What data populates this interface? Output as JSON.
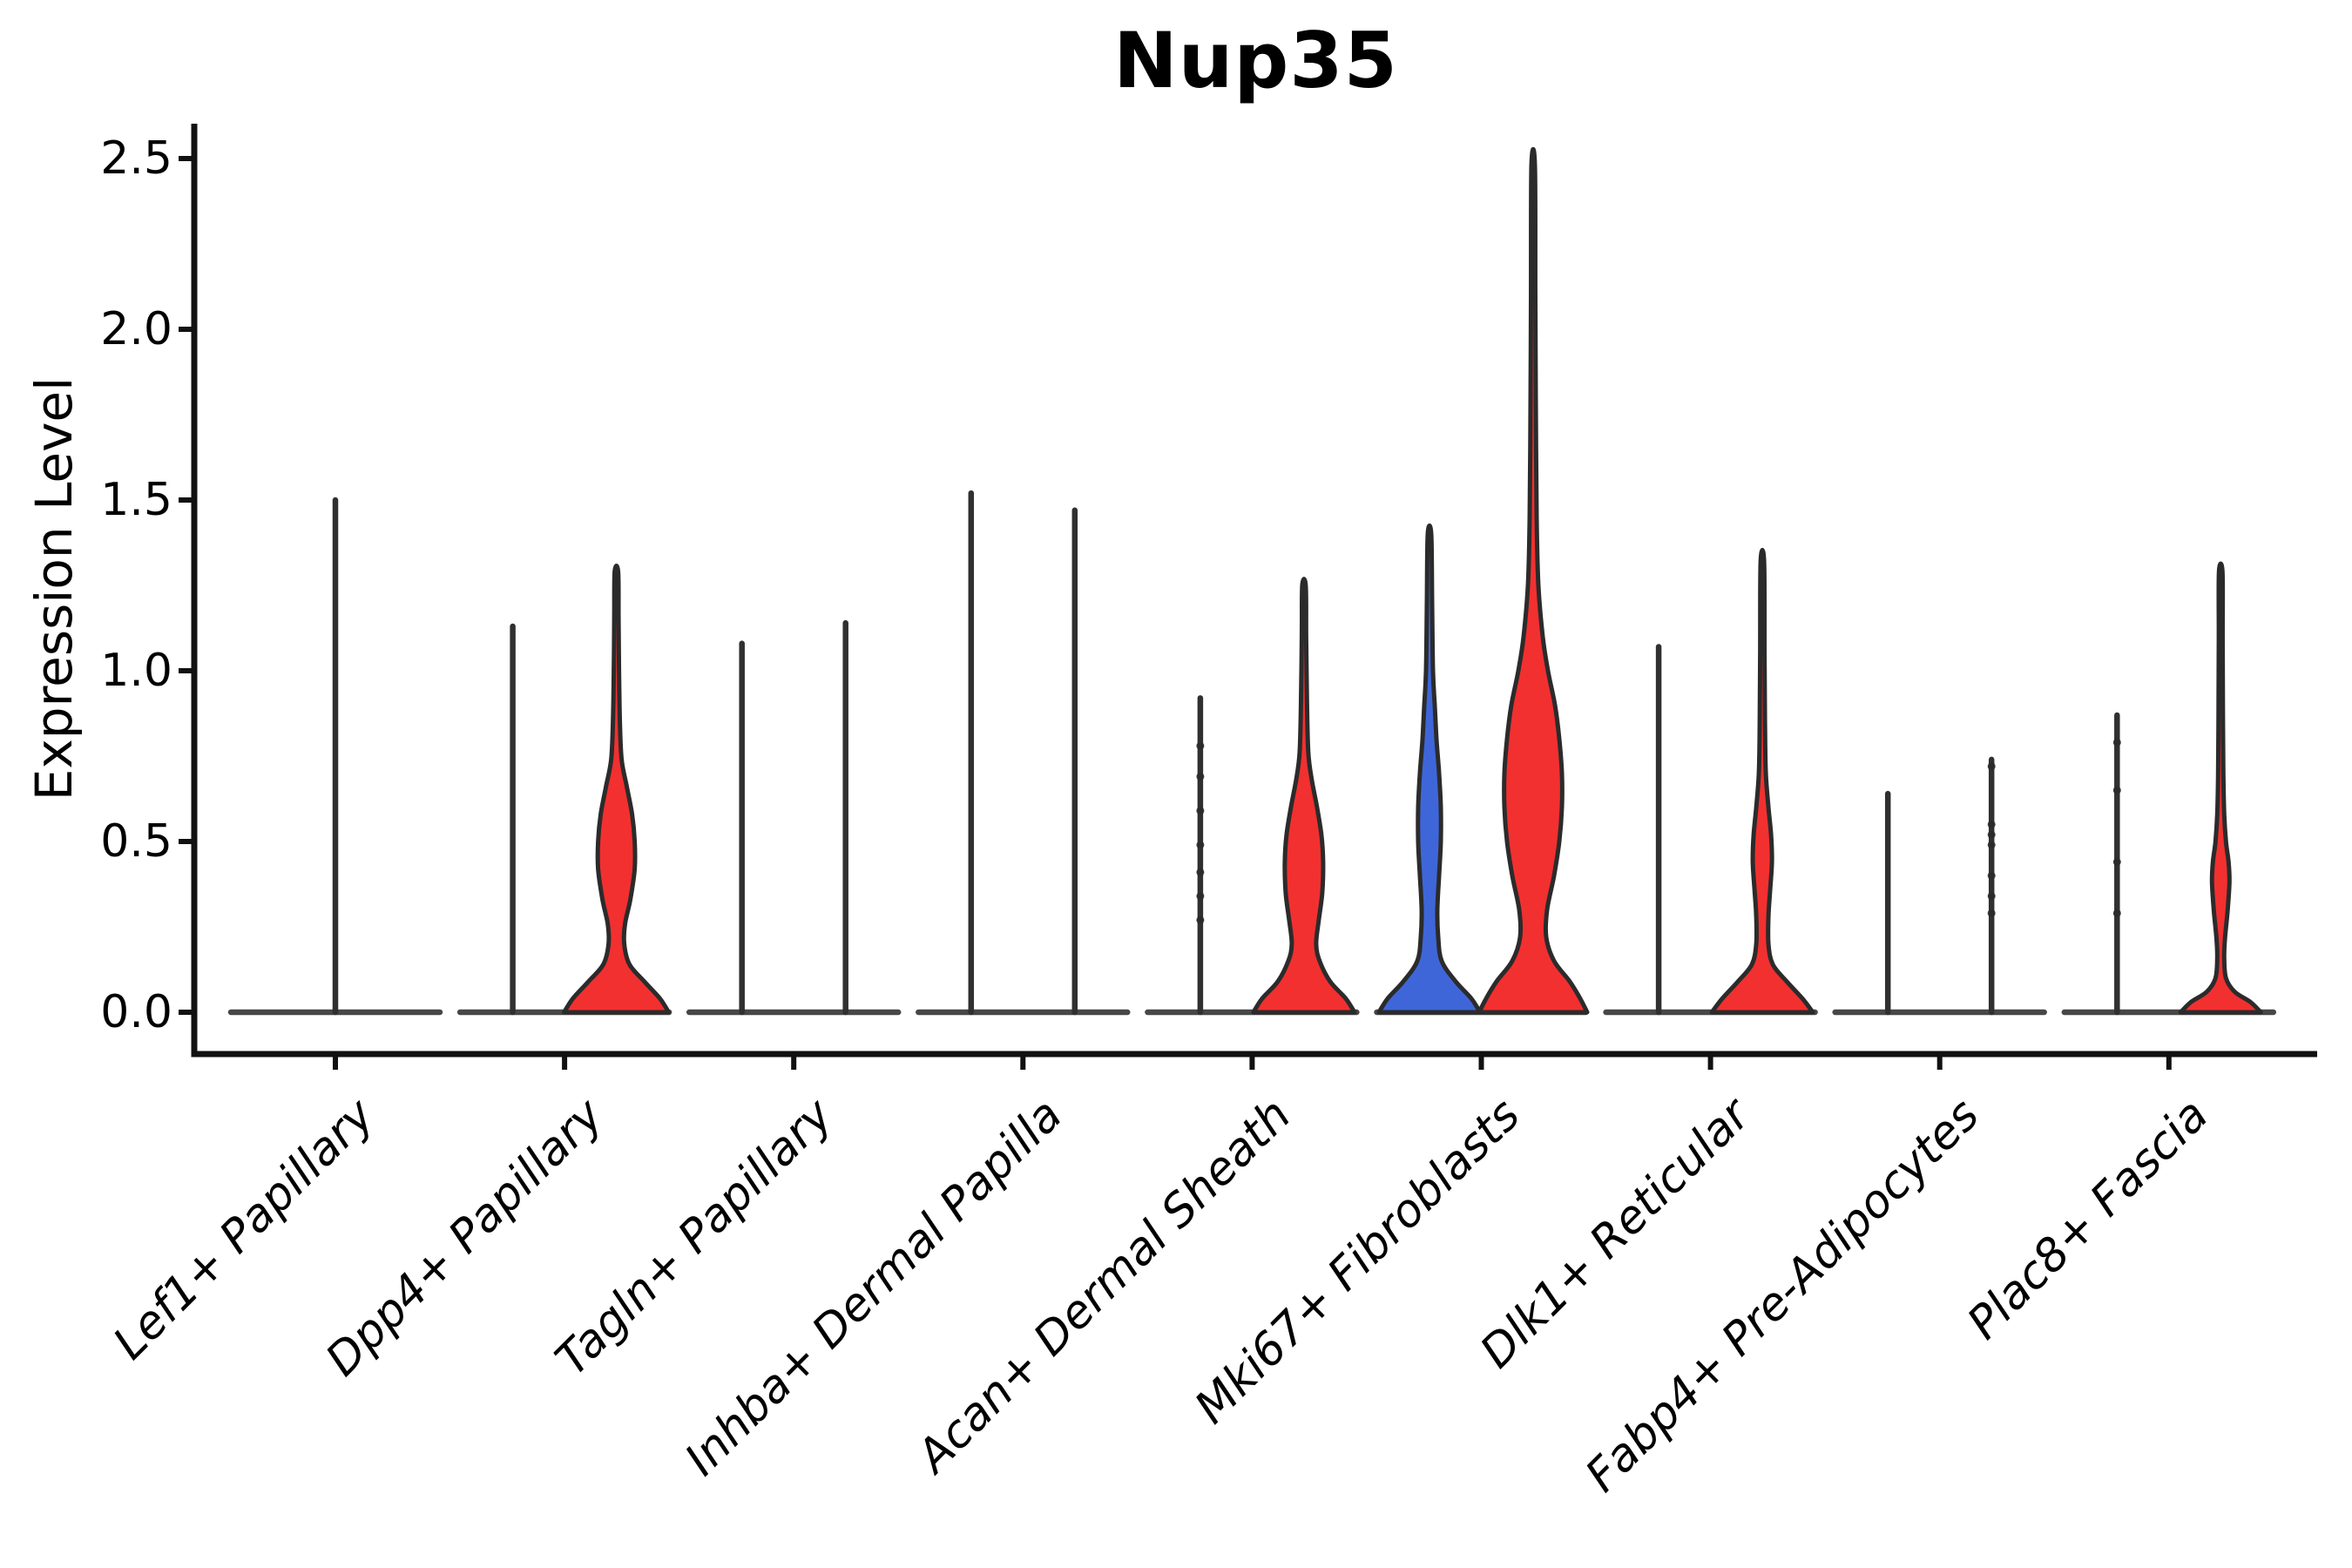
{
  "title": "Nup35",
  "yaxis": {
    "label": "Expression Level",
    "ticks": [
      {
        "label": "0.0",
        "value": 0.0
      },
      {
        "label": "0.5",
        "value": 0.5
      },
      {
        "label": "1.0",
        "value": 1.0
      },
      {
        "label": "1.5",
        "value": 1.5
      },
      {
        "label": "2.0",
        "value": 2.0
      },
      {
        "label": "2.5",
        "value": 2.5
      }
    ]
  },
  "colors": {
    "red_fill": "#F23030",
    "blue_fill": "#3F66D9",
    "violin_outline": "#2B2B2B",
    "line_violin": "#303030",
    "baseline": "#474747",
    "spine": "#111111",
    "background": "#ffffff"
  },
  "chart_data": {
    "type": "violin",
    "title": "Nup35",
    "xlabel": "",
    "ylabel": "Expression Level",
    "ylim": [
      -0.12,
      2.6
    ],
    "ytick_values": [
      0.0,
      0.5,
      1.0,
      1.5,
      2.0,
      2.5
    ],
    "grid": "off",
    "legend": "none",
    "categories": [
      "Lef1+ Papillary",
      "Dpp4+ Papillary",
      "Tagln+ Papillary",
      "Inhba+ Dermal Papilla",
      "Acan+ Dermal Sheath",
      "Mki67+ Fibroblasts",
      "Dlk1+ Reticular",
      "Fabp4+ Pre-Adipocytes",
      "Plac8+ Fascia"
    ],
    "violins": [
      {
        "cat": 0,
        "category": "Lef1+ Papillary",
        "position": "center",
        "style": "line",
        "max": 1.5
      },
      {
        "cat": 1,
        "category": "Dpp4+ Papillary",
        "position": "left",
        "style": "line",
        "max": 1.13
      },
      {
        "cat": 1,
        "category": "Dpp4+ Papillary",
        "position": "right",
        "style": "filled",
        "color_key": "red_fill",
        "max": 1.29,
        "profile": [
          [
            0,
            60
          ],
          [
            0.04,
            50
          ],
          [
            0.09,
            32
          ],
          [
            0.14,
            15
          ],
          [
            0.2,
            9
          ],
          [
            0.26,
            10
          ],
          [
            0.33,
            16
          ],
          [
            0.42,
            21
          ],
          [
            0.5,
            21
          ],
          [
            0.58,
            18
          ],
          [
            0.66,
            12
          ],
          [
            0.74,
            6
          ],
          [
            0.85,
            4
          ],
          [
            1.0,
            3
          ],
          [
            1.15,
            2.5
          ],
          [
            1.29,
            2
          ]
        ]
      },
      {
        "cat": 2,
        "category": "Tagln+ Papillary",
        "position": "left",
        "style": "line",
        "max": 1.08
      },
      {
        "cat": 2,
        "category": "Tagln+ Papillary",
        "position": "right",
        "style": "line",
        "max": 1.14
      },
      {
        "cat": 3,
        "category": "Inhba+ Dermal Papilla",
        "position": "left",
        "style": "line",
        "max": 1.52
      },
      {
        "cat": 3,
        "category": "Inhba+ Dermal Papilla",
        "position": "right",
        "style": "line",
        "max": 1.47
      },
      {
        "cat": 4,
        "category": "Acan+ Dermal Sheath",
        "position": "left",
        "style": "line",
        "max": 0.92,
        "points": [
          0.27,
          0.34,
          0.41,
          0.49,
          0.59,
          0.69,
          0.78
        ]
      },
      {
        "cat": 4,
        "category": "Acan+ Dermal Sheath",
        "position": "right",
        "style": "filled",
        "color_key": "red_fill",
        "max": 1.25,
        "profile": [
          [
            0,
            58
          ],
          [
            0.04,
            48
          ],
          [
            0.09,
            30
          ],
          [
            0.15,
            18
          ],
          [
            0.2,
            14
          ],
          [
            0.27,
            17
          ],
          [
            0.35,
            21
          ],
          [
            0.44,
            22
          ],
          [
            0.52,
            20
          ],
          [
            0.6,
            15
          ],
          [
            0.68,
            9
          ],
          [
            0.76,
            5
          ],
          [
            0.9,
            3.5
          ],
          [
            1.1,
            2.5
          ],
          [
            1.25,
            2
          ]
        ]
      },
      {
        "cat": 5,
        "category": "Mki67+ Fibroblasts",
        "position": "left",
        "style": "filled",
        "color_key": "blue_fill",
        "max": 1.4,
        "profile": [
          [
            0,
            58
          ],
          [
            0.04,
            48
          ],
          [
            0.09,
            30
          ],
          [
            0.15,
            14
          ],
          [
            0.22,
            10
          ],
          [
            0.3,
            9
          ],
          [
            0.4,
            11
          ],
          [
            0.5,
            13
          ],
          [
            0.6,
            13
          ],
          [
            0.7,
            11
          ],
          [
            0.8,
            8
          ],
          [
            0.9,
            6
          ],
          [
            1.0,
            4
          ],
          [
            1.2,
            3
          ],
          [
            1.4,
            2
          ]
        ]
      },
      {
        "cat": 5,
        "category": "Mki67+ Fibroblasts",
        "position": "right",
        "style": "filled",
        "color_key": "red_fill",
        "max": 2.48,
        "profile": [
          [
            0,
            62
          ],
          [
            0.04,
            54
          ],
          [
            0.09,
            42
          ],
          [
            0.15,
            24
          ],
          [
            0.22,
            15
          ],
          [
            0.3,
            16
          ],
          [
            0.4,
            24
          ],
          [
            0.5,
            30
          ],
          [
            0.6,
            33
          ],
          [
            0.7,
            33
          ],
          [
            0.8,
            30
          ],
          [
            0.9,
            25
          ],
          [
            1.0,
            17
          ],
          [
            1.1,
            11
          ],
          [
            1.25,
            6
          ],
          [
            1.45,
            4
          ],
          [
            1.8,
            3
          ],
          [
            2.1,
            2.5
          ],
          [
            2.48,
            2
          ]
        ]
      },
      {
        "cat": 6,
        "category": "Dlk1+ Reticular",
        "position": "left",
        "style": "line",
        "max": 1.07
      },
      {
        "cat": 6,
        "category": "Dlk1+ Reticular",
        "position": "right",
        "style": "filled",
        "color_key": "red_fill",
        "max": 1.32,
        "profile": [
          [
            0,
            58
          ],
          [
            0.04,
            46
          ],
          [
            0.09,
            28
          ],
          [
            0.14,
            12
          ],
          [
            0.2,
            7
          ],
          [
            0.28,
            7
          ],
          [
            0.36,
            9
          ],
          [
            0.44,
            11
          ],
          [
            0.52,
            10
          ],
          [
            0.6,
            7
          ],
          [
            0.7,
            4
          ],
          [
            0.85,
            3
          ],
          [
            1.05,
            2.5
          ],
          [
            1.32,
            2
          ]
        ]
      },
      {
        "cat": 7,
        "category": "Fabp4+ Pre-Adipocytes",
        "position": "left",
        "style": "line",
        "max": 0.64
      },
      {
        "cat": 7,
        "category": "Fabp4+ Pre-Adipocytes",
        "position": "right",
        "style": "line",
        "max": 0.74,
        "points": [
          0.29,
          0.34,
          0.4,
          0.49,
          0.52,
          0.55,
          0.72
        ]
      },
      {
        "cat": 8,
        "category": "Plac8+ Fascia",
        "position": "left",
        "style": "line",
        "max": 0.87,
        "points": [
          0.29,
          0.44,
          0.65,
          0.79
        ]
      },
      {
        "cat": 8,
        "category": "Plac8+ Fascia",
        "position": "right",
        "style": "filled",
        "color_key": "red_fill",
        "max": 1.29,
        "profile": [
          [
            0,
            46
          ],
          [
            0.03,
            34
          ],
          [
            0.06,
            16
          ],
          [
            0.1,
            6
          ],
          [
            0.16,
            4
          ],
          [
            0.22,
            5
          ],
          [
            0.3,
            8
          ],
          [
            0.38,
            10
          ],
          [
            0.44,
            9
          ],
          [
            0.5,
            6
          ],
          [
            0.58,
            4
          ],
          [
            0.7,
            3
          ],
          [
            0.9,
            2.5
          ],
          [
            1.1,
            2.2
          ],
          [
            1.29,
            2
          ]
        ]
      }
    ]
  }
}
